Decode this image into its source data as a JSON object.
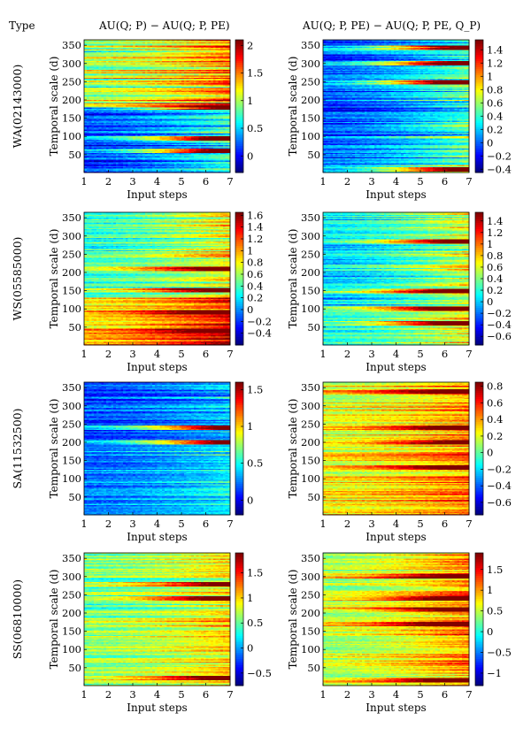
{
  "header": {
    "type_label": "Type",
    "col1_title": "AU(Q; P) − AU(Q; P, PE)",
    "col2_title": "AU(Q; P, PE) − AU(Q; P, PE, Q_P)"
  },
  "colormap": "jet",
  "colormap_stops": [
    "#00008f",
    "#0000ff",
    "#00ffff",
    "#ffff00",
    "#ff0000",
    "#800000"
  ],
  "rows": [
    {
      "type_label": "WA(02143000)"
    },
    {
      "type_label": "WS(05585000)"
    },
    {
      "type_label": "SA(11532500)"
    },
    {
      "type_label": "SS(06810000)"
    }
  ],
  "chart_data": [
    {
      "type": "heatmap",
      "row": 0,
      "col": 0,
      "title": "",
      "xlabel": "Input steps",
      "ylabel": "Temporal scale (d)",
      "xlim": [
        1,
        7
      ],
      "ylim": [
        1,
        365
      ],
      "xticks": [
        1,
        2,
        3,
        4,
        5,
        6,
        7
      ],
      "yticks": [
        50,
        100,
        150,
        200,
        250,
        300,
        350
      ],
      "clim": [
        -0.3,
        2.1
      ],
      "cbar_ticks": [
        0,
        0.5,
        1,
        1.5,
        2
      ],
      "cbar_tick_labels": [
        "0",
        "0.5",
        "1",
        "1.5",
        "2"
      ],
      "pattern": {
        "seed": 11,
        "base_lo": [
          0.1,
          0.2
        ],
        "base_hi": [
          0.7,
          1.3
        ],
        "split": 180,
        "grow": 0.6,
        "spread": 0.55,
        "spikes": [
          180,
          95,
          60
        ]
      }
    },
    {
      "type": "heatmap",
      "row": 0,
      "col": 1,
      "title": "",
      "xlabel": "Input steps",
      "ylabel": "Temporal scale (d)",
      "xlim": [
        1,
        7
      ],
      "ylim": [
        1,
        365
      ],
      "xticks": [
        1,
        2,
        3,
        4,
        5,
        6,
        7
      ],
      "yticks": [
        50,
        100,
        150,
        200,
        250,
        300,
        350
      ],
      "clim": [
        -0.45,
        1.55
      ],
      "cbar_ticks": [
        -0.4,
        -0.2,
        0,
        0.2,
        0.4,
        0.6,
        0.8,
        1,
        1.2,
        1.4
      ],
      "cbar_tick_labels": [
        "−0.4",
        "−0.2",
        "0",
        "0.2",
        "0.4",
        "0.6",
        "0.8",
        "1",
        "1.2",
        "1.4"
      ],
      "pattern": {
        "seed": 23,
        "base_lo": [
          -0.1,
          0.05
        ],
        "base_hi": [
          -0.1,
          0.05
        ],
        "split": 365,
        "grow": 0.55,
        "spread": 0.45,
        "spikes": [
          8,
          300,
          345,
          250
        ]
      }
    },
    {
      "type": "heatmap",
      "row": 1,
      "col": 0,
      "title": "",
      "xlabel": "Input steps",
      "ylabel": "Temporal scale (d)",
      "xlim": [
        1,
        7
      ],
      "ylim": [
        1,
        365
      ],
      "xticks": [
        1,
        2,
        3,
        4,
        5,
        6,
        7
      ],
      "yticks": [
        50,
        100,
        150,
        200,
        250,
        300,
        350
      ],
      "clim": [
        -0.6,
        1.65
      ],
      "cbar_ticks": [
        -0.4,
        -0.2,
        0,
        0.2,
        0.4,
        0.6,
        0.8,
        1,
        1.2,
        1.4,
        1.6
      ],
      "cbar_tick_labels": [
        "−0.4",
        "−0.2",
        "0",
        "0.2",
        "0.4",
        "0.6",
        "0.8",
        "1",
        "1.2",
        "1.4",
        "1.6"
      ],
      "pattern": {
        "seed": 37,
        "base_lo": [
          0.7,
          1.0
        ],
        "base_hi": [
          0.3,
          0.4
        ],
        "split": 130,
        "grow": 0.55,
        "spread": 0.45,
        "spikes": [
          152,
          40,
          210,
          90
        ]
      }
    },
    {
      "type": "heatmap",
      "row": 1,
      "col": 1,
      "title": "",
      "xlabel": "Input steps",
      "ylabel": "Temporal scale (d)",
      "xlim": [
        1,
        7
      ],
      "ylim": [
        1,
        365
      ],
      "xticks": [
        1,
        2,
        3,
        4,
        5,
        6,
        7
      ],
      "yticks": [
        50,
        100,
        150,
        200,
        250,
        300,
        350
      ],
      "clim": [
        -0.75,
        1.55
      ],
      "cbar_ticks": [
        -0.6,
        -0.4,
        -0.2,
        0,
        0.2,
        0.4,
        0.6,
        0.8,
        1,
        1.2,
        1.4
      ],
      "cbar_tick_labels": [
        "−0.6",
        "−0.4",
        "−0.2",
        "0",
        "0.2",
        "0.4",
        "0.6",
        "0.8",
        "1",
        "1.2",
        "1.4"
      ],
      "pattern": {
        "seed": 41,
        "base_lo": [
          0.15,
          0.2
        ],
        "base_hi": [
          -0.05,
          0.1
        ],
        "split": 110,
        "grow": 0.6,
        "spread": 0.5,
        "spikes": [
          285,
          100,
          60,
          150
        ]
      }
    },
    {
      "type": "heatmap",
      "row": 2,
      "col": 0,
      "title": "",
      "xlabel": "Input steps",
      "ylabel": "Temporal scale (d)",
      "xlim": [
        1,
        7
      ],
      "ylim": [
        1,
        365
      ],
      "xticks": [
        1,
        2,
        3,
        4,
        5,
        6,
        7
      ],
      "yticks": [
        50,
        100,
        150,
        200,
        250,
        300,
        350
      ],
      "clim": [
        -0.2,
        1.6
      ],
      "cbar_ticks": [
        0,
        0.5,
        1,
        1.5
      ],
      "cbar_tick_labels": [
        "0",
        "0.5",
        "1",
        "1.5"
      ],
      "pattern": {
        "seed": 53,
        "base_lo": [
          0.2,
          0.3
        ],
        "base_hi": [
          0.1,
          0.2
        ],
        "split": 180,
        "grow": 0.25,
        "spread": 0.3,
        "spikes": [
          240,
          200
        ]
      }
    },
    {
      "type": "heatmap",
      "row": 2,
      "col": 1,
      "title": "",
      "xlabel": "Input steps",
      "ylabel": "Temporal scale (d)",
      "xlim": [
        1,
        7
      ],
      "ylim": [
        1,
        365
      ],
      "xticks": [
        1,
        2,
        3,
        4,
        5,
        6,
        7
      ],
      "yticks": [
        50,
        100,
        150,
        200,
        250,
        300,
        350
      ],
      "clim": [
        -0.75,
        0.85
      ],
      "cbar_ticks": [
        -0.6,
        -0.4,
        -0.2,
        0,
        0.2,
        0.4,
        0.6,
        0.8
      ],
      "cbar_tick_labels": [
        "−0.6",
        "−0.4",
        "−0.2",
        "0",
        "0.2",
        "0.4",
        "0.6",
        "0.8"
      ],
      "pattern": {
        "seed": 67,
        "base_lo": [
          0.2,
          0.3
        ],
        "base_hi": [
          0.15,
          0.25
        ],
        "split": 180,
        "grow": 0.25,
        "spread": 0.35,
        "spikes": [
          130,
          200,
          240,
          340
        ]
      }
    },
    {
      "type": "heatmap",
      "row": 3,
      "col": 0,
      "title": "",
      "xlabel": "Input steps",
      "ylabel": "Temporal scale (d)",
      "xlim": [
        1,
        7
      ],
      "ylim": [
        1,
        365
      ],
      "xticks": [
        1,
        2,
        3,
        4,
        5,
        6,
        7
      ],
      "yticks": [
        50,
        100,
        150,
        200,
        250,
        300,
        350
      ],
      "clim": [
        -0.75,
        1.9
      ],
      "cbar_ticks": [
        -0.5,
        0,
        0.5,
        1,
        1.5
      ],
      "cbar_tick_labels": [
        "−0.5",
        "0",
        "0.5",
        "1",
        "1.5"
      ],
      "pattern": {
        "seed": 79,
        "base_lo": [
          0.55,
          0.7
        ],
        "base_hi": [
          0.45,
          0.6
        ],
        "split": 180,
        "grow": 0.45,
        "spread": 0.55,
        "spikes": [
          20,
          280,
          240
        ]
      }
    },
    {
      "type": "heatmap",
      "row": 3,
      "col": 1,
      "title": "",
      "xlabel": "Input steps",
      "ylabel": "Temporal scale (d)",
      "xlim": [
        1,
        7
      ],
      "ylim": [
        1,
        365
      ],
      "xticks": [
        1,
        2,
        3,
        4,
        5,
        6,
        7
      ],
      "yticks": [
        50,
        100,
        150,
        200,
        250,
        300,
        350
      ],
      "clim": [
        -1.3,
        1.9
      ],
      "cbar_ticks": [
        -1,
        -0.5,
        0,
        0.5,
        1,
        1.5
      ],
      "cbar_tick_labels": [
        "−1",
        "−0.5",
        "0",
        "0.5",
        "1",
        "1.5"
      ],
      "pattern": {
        "seed": 83,
        "base_lo": [
          0.45,
          0.55
        ],
        "base_hi": [
          0.35,
          0.5
        ],
        "split": 180,
        "grow": 0.7,
        "spread": 0.6,
        "spikes": [
          170,
          210,
          240,
          300,
          15
        ]
      }
    }
  ]
}
